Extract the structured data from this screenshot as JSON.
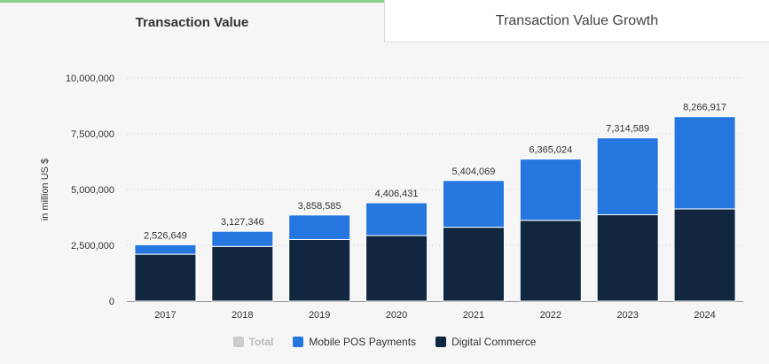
{
  "tabs": [
    {
      "label": "Transaction Value",
      "active": true
    },
    {
      "label": "Transaction Value Growth",
      "active": false
    }
  ],
  "colors": {
    "mobile": "#2676e0",
    "digital": "#112740",
    "total": "#cccccc"
  },
  "chart_data": {
    "type": "bar",
    "stacked": true,
    "categories": [
      "2017",
      "2018",
      "2019",
      "2020",
      "2021",
      "2022",
      "2023",
      "2024"
    ],
    "ylabel": "in million US $",
    "ylim": [
      0,
      10000000
    ],
    "yticks": [
      0,
      2500000,
      5000000,
      7500000,
      10000000
    ],
    "ytick_labels": [
      "0",
      "2,500,000",
      "5,000,000",
      "7,500,000",
      "10,000,000"
    ],
    "grid": "horizontal dotted",
    "series": [
      {
        "name": "Digital Commerce",
        "values": [
          2100000,
          2450000,
          2760000,
          2940000,
          3310000,
          3620000,
          3870000,
          4130000
        ]
      },
      {
        "name": "Mobile POS Payments",
        "values": [
          426649,
          677346,
          1098585,
          1466431,
          2094069,
          2745024,
          3444589,
          4136917
        ]
      }
    ],
    "totals": [
      2526649,
      3127346,
      3858585,
      4406431,
      5404069,
      6365024,
      7314589,
      8266917
    ],
    "total_labels": [
      "2,526,649",
      "3,127,346",
      "3,858,585",
      "4,406,431",
      "5,404,069",
      "6,365,024",
      "7,314,589",
      "8,266,917"
    ],
    "legend": [
      {
        "name": "Total",
        "enabled": false
      },
      {
        "name": "Mobile POS Payments",
        "enabled": true
      },
      {
        "name": "Digital Commerce",
        "enabled": true
      }
    ]
  }
}
